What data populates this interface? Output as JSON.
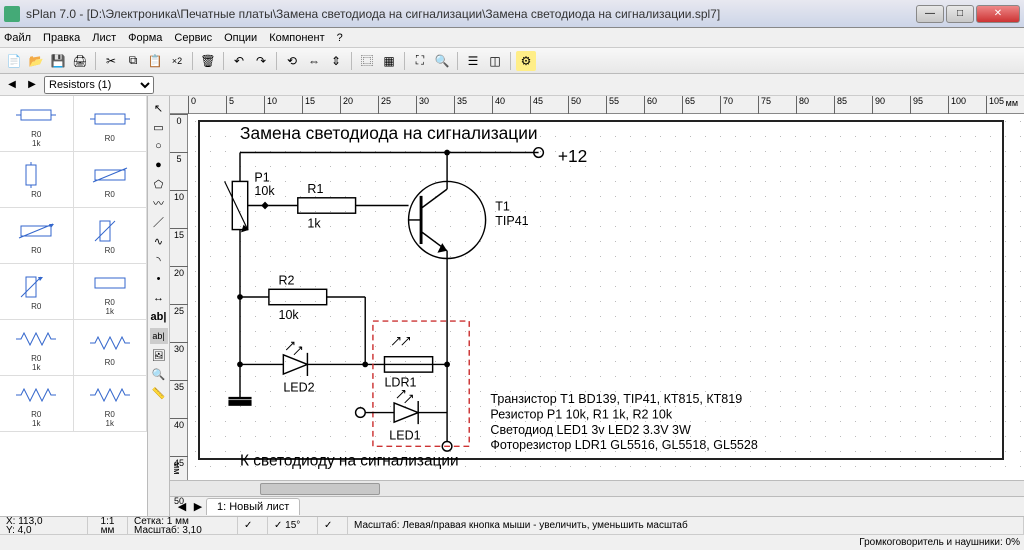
{
  "window": {
    "title": "sPlan 7.0 - [D:\\Электроника\\Печатные платы\\Замена светодиода на сигнализации\\Замена светодиода на сигнализации.spl7]"
  },
  "menu": [
    "Файл",
    "Правка",
    "Лист",
    "Форма",
    "Сервис",
    "Опции",
    "Компонент",
    "?"
  ],
  "library_selector": {
    "value": "Resistors (1)"
  },
  "palette": {
    "r0_label": "R0",
    "v1k": "1k"
  },
  "ruler": {
    "unit": "мм",
    "h_ticks": [
      0,
      5,
      10,
      15,
      20,
      25,
      30,
      35,
      40,
      45,
      50,
      55,
      60,
      65,
      70,
      75,
      80,
      85,
      90,
      95,
      100,
      105
    ],
    "v_ticks": [
      0,
      5,
      10,
      15,
      20,
      25,
      30,
      35,
      40,
      45,
      50
    ]
  },
  "schematic": {
    "title": "Замена светодиода на сигнализации",
    "plus12": "+12",
    "P1": {
      "ref": "P1",
      "val": "10k"
    },
    "R1": {
      "ref": "R1",
      "val": "1k"
    },
    "R2": {
      "ref": "R2",
      "val": "10k"
    },
    "T1": {
      "ref": "T1",
      "val": "TIP41"
    },
    "LDR1": "LDR1",
    "LED1": "LED1",
    "LED2": "LED2",
    "bottom_text": "К светодиоду на сигнализации",
    "notes": [
      "Транзистор T1  BD139, TIP41, КТ815, КТ819",
      "Резистор P1 10k, R1 1k, R2 10k",
      "Светодиод LED1 3v LED2 3.3V 3W",
      "Фоторезистор LDR1 GL5516, GL5518, GL5528"
    ],
    "colors": {
      "wire": "#000000",
      "dashed": "#cc3333"
    }
  },
  "tab": {
    "label": "1: Новый лист"
  },
  "status": {
    "coords": {
      "x": "X: 113,0",
      "y": "Y: 4,0"
    },
    "zoom": {
      "ratio": "1:1",
      "unit": "мм"
    },
    "grid": {
      "l1": "Сетка: 1 мм",
      "l2": "Масштаб: 3,10"
    },
    "checks": [
      "✓",
      "✓ 15°",
      "✓"
    ],
    "hint": "Масштаб: Левая/правая кнопка мыши - увеличить, уменьшить масштаб",
    "audio": "Громкоговоритель и наушники: 0%"
  }
}
